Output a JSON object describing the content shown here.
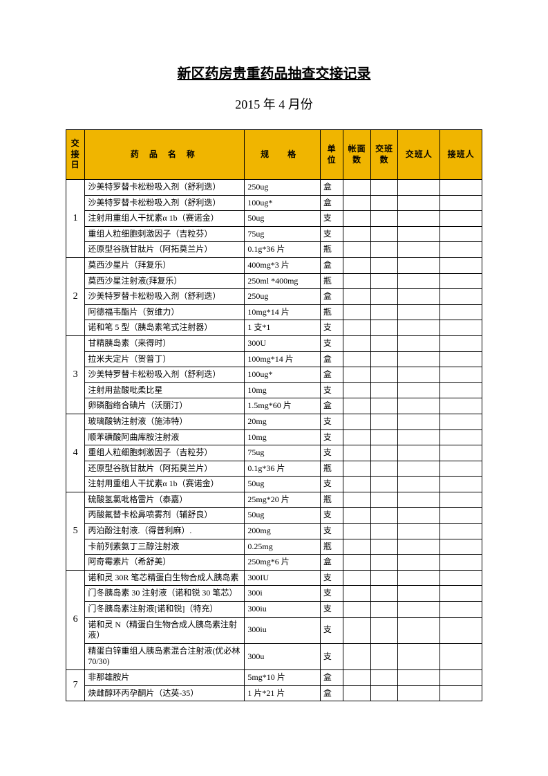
{
  "title": "新区药房贵重药品抽查交接记录",
  "subtitle": "2015 年 4 月份",
  "headers": {
    "day": "交接日",
    "name": "药 品 名 称",
    "spec": "规   格",
    "unit": "单位",
    "acct": "帐面数",
    "shift": "交班数",
    "hand": "交班人",
    "recv": "接班人"
  },
  "groups": [
    {
      "day": "1",
      "rows": [
        {
          "name": "沙美特罗替卡松粉吸入剂（舒利迭）",
          "spec": "250ug",
          "unit": "盒"
        },
        {
          "name": "沙美特罗替卡松粉吸入剂（舒利迭）",
          "spec": "100ug*",
          "unit": "盒"
        },
        {
          "name": "注射用重组人干扰素α 1b（赛诺金）",
          "spec": "50ug",
          "unit": "支"
        },
        {
          "name": "重组人粒细胞刺激因子（吉粒芬）",
          "spec": "75ug",
          "unit": "支"
        },
        {
          "name": "还原型谷胱甘肽片（阿拓莫兰片）",
          "spec": "0.1g*36 片",
          "unit": "瓶"
        }
      ]
    },
    {
      "day": "2",
      "rows": [
        {
          "name": "莫西沙星片（拜复乐）",
          "spec": "400mg*3 片",
          "unit": "盒"
        },
        {
          "name": "莫西沙星注射液(拜复乐）",
          "spec": "250ml *400mg",
          "unit": "瓶"
        },
        {
          "name": "沙美特罗替卡松粉吸入剂（舒利迭）",
          "spec": "250ug",
          "unit": "盒"
        },
        {
          "name": "阿德福韦酯片（贺维力）",
          "spec": "10mg*14 片",
          "unit": "瓶"
        },
        {
          "name": "诺和笔 5 型（胰岛素笔式注射器）",
          "spec": "1 支*1",
          "unit": "支"
        }
      ]
    },
    {
      "day": "3",
      "rows": [
        {
          "name": "甘精胰岛素（来得时）",
          "spec": "300U",
          "unit": "支"
        },
        {
          "name": "拉米夫定片（贺普丁）",
          "spec": "100mg*14 片",
          "unit": "盒"
        },
        {
          "name": "沙美特罗替卡松粉吸入剂（舒利迭）",
          "spec": "100ug*",
          "unit": "盒"
        },
        {
          "name": "注射用盐酸吡柔比星",
          "spec": "10mg",
          "unit": "支"
        },
        {
          "name": "卵磷脂络合碘片（沃丽汀）",
          "spec": "1.5mg*60 片",
          "unit": "盒"
        }
      ]
    },
    {
      "day": "4",
      "rows": [
        {
          "name": "玻璃酸钠注射液（施沛特）",
          "spec": "20mg",
          "unit": "支"
        },
        {
          "name": "顺苯磺酸阿曲库胺注射液",
          "spec": "10mg",
          "unit": "支"
        },
        {
          "name": "重组人粒细胞刺激因子（吉粒芬）",
          "spec": "75ug",
          "unit": "支"
        },
        {
          "name": "还原型谷胱甘肽片（阿拓莫兰片）",
          "spec": "0.1g*36 片",
          "unit": "瓶"
        },
        {
          "name": "注射用重组人干扰素α 1b（赛诺金）",
          "spec": "50ug",
          "unit": "支"
        }
      ]
    },
    {
      "day": "5",
      "rows": [
        {
          "name": "硫酸氢氯吡格雷片（泰嘉）",
          "spec": "25mg*20 片",
          "unit": "瓶"
        },
        {
          "name": "丙酸氟替卡松鼻喷雾剂（辅舒良）",
          "spec": "50ug",
          "unit": "支"
        },
        {
          "name": "丙泊酚注射液.（得普利麻）.",
          "spec": "200mg",
          "unit": "支"
        },
        {
          "name": "卡前列素氨丁三醇注射液",
          "spec": "0.25mg",
          "unit": "瓶"
        },
        {
          "name": "阿奇霉素片（希舒美）",
          "spec": "250mg*6 片",
          "unit": "盒"
        }
      ]
    },
    {
      "day": "6",
      "rows": [
        {
          "name": "诺和灵 30R 笔芯精蛋白生物合成人胰岛素",
          "spec": "300IU",
          "unit": "支"
        },
        {
          "name": "门冬胰岛素 30 注射液（诺和锐 30 笔芯）",
          "spec": "300i",
          "unit": "支"
        },
        {
          "name": "门冬胰岛素注射液[诺和锐]（特充）",
          "spec": "300iu",
          "unit": "支"
        },
        {
          "name": "诺和灵 N（精蛋白生物合成人胰岛素注射液）",
          "spec": "300iu",
          "unit": "支"
        },
        {
          "name": "精蛋白锌重组人胰岛素混合注射液(优必林 70/30)",
          "spec": "300u",
          "unit": "支"
        }
      ]
    },
    {
      "day": "7",
      "rows": [
        {
          "name": "非那雄胺片",
          "spec": "5mg*10 片",
          "unit": "盒"
        },
        {
          "name": "炔雌醇环丙孕酮片（达英-35）",
          "spec": "1 片*21 片",
          "unit": "盒"
        }
      ]
    }
  ]
}
